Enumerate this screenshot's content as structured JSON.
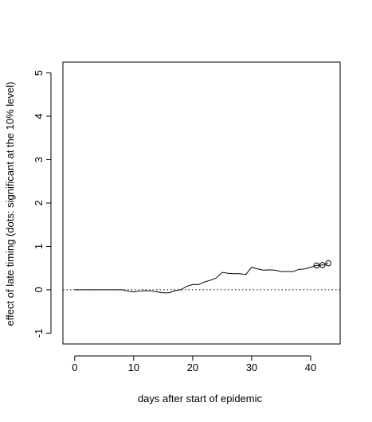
{
  "chart_data": {
    "type": "line",
    "title": "",
    "xlabel": "days after start of epidemic",
    "ylabel": "effect of late timing (dots: significant at the 10% level)",
    "xlim": [
      -2,
      45
    ],
    "ylim": [
      -1.25,
      5.25
    ],
    "xticks": [
      0,
      10,
      20,
      30,
      40
    ],
    "yticks": [
      -1,
      0,
      1,
      2,
      3,
      4,
      5
    ],
    "xtick_labels": [
      "0",
      "10",
      "20",
      "30",
      "40"
    ],
    "ytick_labels": [
      "-1",
      "0",
      "1",
      "2",
      "3",
      "4",
      "5"
    ],
    "reference_line": {
      "y": 0,
      "style": "dotted"
    },
    "grid": false,
    "legend": "none",
    "series": [
      {
        "x": [
          0,
          1,
          2,
          3,
          4,
          5,
          6,
          7,
          8,
          9,
          10,
          11,
          12,
          13,
          14,
          15,
          16,
          17,
          18,
          19,
          20,
          21,
          22,
          23,
          24,
          25,
          26,
          27,
          28,
          29,
          30,
          31,
          32,
          33,
          34,
          35,
          36,
          37,
          38,
          39,
          40,
          41,
          42,
          43
        ],
        "y": [
          0.0,
          0.0,
          0.0,
          0.0,
          0.0,
          0.0,
          0.0,
          0.0,
          0.0,
          -0.03,
          -0.05,
          -0.03,
          -0.02,
          -0.03,
          -0.05,
          -0.07,
          -0.07,
          -0.02,
          0.0,
          0.08,
          0.12,
          0.12,
          0.18,
          0.22,
          0.27,
          0.4,
          0.38,
          0.37,
          0.37,
          0.35,
          0.52,
          0.48,
          0.45,
          0.46,
          0.45,
          0.42,
          0.42,
          0.42,
          0.47,
          0.48,
          0.52,
          0.56,
          0.57,
          0.61
        ],
        "color": "#000000"
      }
    ],
    "significant_points": {
      "x": [
        41,
        42,
        43
      ],
      "y": [
        0.56,
        0.57,
        0.61
      ]
    }
  }
}
